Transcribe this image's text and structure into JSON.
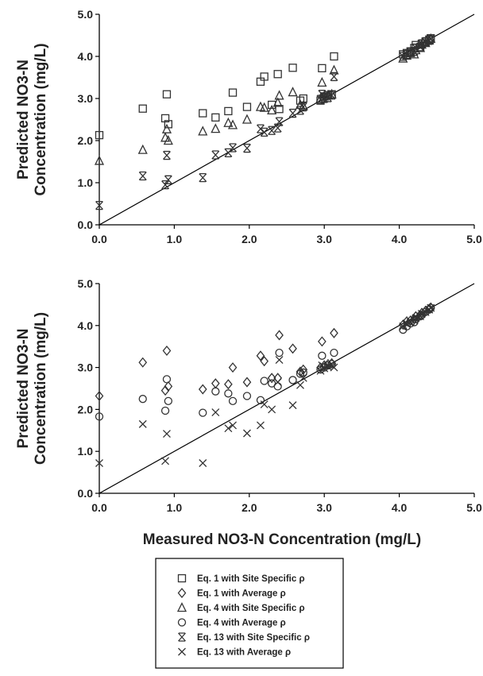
{
  "chart_data": [
    {
      "type": "scatter",
      "xlim": [
        0,
        5
      ],
      "ylim": [
        0,
        5
      ],
      "xticks": [
        "0.0",
        "1.0",
        "2.0",
        "3.0",
        "4.0",
        "5.0"
      ],
      "yticks": [
        "0.0",
        "1.0",
        "2.0",
        "3.0",
        "4.0",
        "5.0"
      ],
      "ylabel": "Predicted NO3-N Concentration (mg/L)",
      "ylabel_lines": [
        "Predicted NO3-N",
        "Concentration (mg/L)"
      ],
      "xlabel": "",
      "one_to_one_line": true,
      "series": [
        {
          "name": "Eq. 1 with Site Specific ρ",
          "marker": "square",
          "points": [
            [
              0.0,
              2.13
            ],
            [
              0.58,
              2.76
            ],
            [
              0.88,
              2.53
            ],
            [
              0.9,
              3.1
            ],
            [
              0.92,
              2.39
            ],
            [
              1.38,
              2.65
            ],
            [
              1.55,
              2.55
            ],
            [
              1.72,
              2.7
            ],
            [
              1.78,
              3.14
            ],
            [
              1.97,
              2.8
            ],
            [
              2.15,
              3.4
            ],
            [
              2.2,
              3.52
            ],
            [
              2.3,
              2.85
            ],
            [
              2.38,
              3.58
            ],
            [
              2.4,
              2.75
            ],
            [
              2.58,
              3.73
            ],
            [
              2.68,
              2.95
            ],
            [
              2.72,
              3.0
            ],
            [
              2.95,
              2.95
            ],
            [
              2.97,
              3.72
            ],
            [
              3.0,
              3.05
            ],
            [
              3.05,
              3.08
            ],
            [
              3.1,
              3.1
            ],
            [
              3.13,
              4.0
            ],
            [
              4.05,
              4.05
            ],
            [
              4.1,
              4.08
            ],
            [
              4.15,
              4.12
            ],
            [
              4.2,
              4.2
            ],
            [
              4.22,
              4.27
            ],
            [
              4.28,
              4.22
            ],
            [
              4.3,
              4.3
            ],
            [
              4.35,
              4.35
            ],
            [
              4.4,
              4.4
            ],
            [
              4.42,
              4.43
            ]
          ]
        },
        {
          "name": "Eq. 4 with Site Specific ρ",
          "marker": "triangle",
          "points": [
            [
              0.0,
              1.52
            ],
            [
              0.58,
              1.78
            ],
            [
              0.88,
              2.07
            ],
            [
              0.9,
              2.27
            ],
            [
              0.92,
              2.0
            ],
            [
              1.38,
              2.22
            ],
            [
              1.55,
              2.28
            ],
            [
              1.72,
              2.42
            ],
            [
              1.78,
              2.37
            ],
            [
              1.97,
              2.5
            ],
            [
              2.15,
              2.8
            ],
            [
              2.2,
              2.78
            ],
            [
              2.3,
              2.72
            ],
            [
              2.38,
              2.9
            ],
            [
              2.4,
              3.07
            ],
            [
              2.58,
              3.15
            ],
            [
              2.68,
              2.85
            ],
            [
              2.72,
              2.82
            ],
            [
              2.95,
              3.0
            ],
            [
              2.97,
              3.38
            ],
            [
              3.0,
              3.05
            ],
            [
              3.05,
              3.08
            ],
            [
              3.1,
              3.1
            ],
            [
              3.13,
              3.67
            ],
            [
              4.05,
              3.95
            ],
            [
              4.1,
              4.02
            ],
            [
              4.15,
              4.08
            ],
            [
              4.2,
              4.05
            ],
            [
              4.22,
              4.15
            ],
            [
              4.28,
              4.2
            ],
            [
              4.3,
              4.28
            ],
            [
              4.35,
              4.32
            ],
            [
              4.4,
              4.38
            ],
            [
              4.42,
              4.42
            ]
          ]
        },
        {
          "name": "Eq. 13 with Site Specific ρ",
          "marker": "asterisk",
          "points": [
            [
              0.0,
              0.46
            ],
            [
              0.58,
              1.16
            ],
            [
              0.88,
              0.95
            ],
            [
              0.9,
              1.65
            ],
            [
              0.92,
              1.07
            ],
            [
              1.38,
              1.12
            ],
            [
              1.55,
              1.66
            ],
            [
              1.72,
              1.71
            ],
            [
              1.78,
              1.83
            ],
            [
              1.97,
              1.82
            ],
            [
              2.15,
              2.28
            ],
            [
              2.2,
              2.2
            ],
            [
              2.3,
              2.24
            ],
            [
              2.38,
              2.3
            ],
            [
              2.4,
              2.45
            ],
            [
              2.58,
              2.65
            ],
            [
              2.68,
              2.72
            ],
            [
              2.72,
              2.8
            ],
            [
              2.95,
              2.98
            ],
            [
              2.97,
              3.1
            ],
            [
              3.0,
              3.0
            ],
            [
              3.05,
              3.02
            ],
            [
              3.1,
              3.08
            ],
            [
              3.13,
              3.52
            ],
            [
              4.05,
              4.0
            ],
            [
              4.1,
              4.05
            ],
            [
              4.15,
              4.1
            ],
            [
              4.2,
              4.12
            ],
            [
              4.22,
              4.2
            ],
            [
              4.28,
              4.22
            ],
            [
              4.3,
              4.3
            ],
            [
              4.35,
              4.35
            ],
            [
              4.4,
              4.38
            ],
            [
              4.42,
              4.42
            ]
          ]
        }
      ]
    },
    {
      "type": "scatter",
      "xlim": [
        0,
        5
      ],
      "ylim": [
        0,
        5
      ],
      "xticks": [
        "0.0",
        "1.0",
        "2.0",
        "3.0",
        "4.0",
        "5.0"
      ],
      "yticks": [
        "0.0",
        "1.0",
        "2.0",
        "3.0",
        "4.0",
        "5.0"
      ],
      "ylabel": "Predicted NO3-N Concentration (mg/L)",
      "ylabel_lines": [
        "Predicted NO3-N",
        "Concentration (mg/L)"
      ],
      "xlabel": "Measured NO3-N Concentration (mg/L)",
      "one_to_one_line": true,
      "series": [
        {
          "name": "Eq. 1 with Average ρ",
          "marker": "diamond",
          "points": [
            [
              0.0,
              2.32
            ],
            [
              0.58,
              3.12
            ],
            [
              0.88,
              2.45
            ],
            [
              0.9,
              3.4
            ],
            [
              0.92,
              2.55
            ],
            [
              1.38,
              2.48
            ],
            [
              1.55,
              2.62
            ],
            [
              1.72,
              2.6
            ],
            [
              1.78,
              3.0
            ],
            [
              1.97,
              2.65
            ],
            [
              2.15,
              3.28
            ],
            [
              2.2,
              3.15
            ],
            [
              2.3,
              2.75
            ],
            [
              2.38,
              2.75
            ],
            [
              2.4,
              3.77
            ],
            [
              2.58,
              3.45
            ],
            [
              2.68,
              2.9
            ],
            [
              2.72,
              2.95
            ],
            [
              2.95,
              3.0
            ],
            [
              2.97,
              3.62
            ],
            [
              3.0,
              3.05
            ],
            [
              3.05,
              3.08
            ],
            [
              3.1,
              3.1
            ],
            [
              3.13,
              3.82
            ],
            [
              4.05,
              4.02
            ],
            [
              4.1,
              4.1
            ],
            [
              4.15,
              4.12
            ],
            [
              4.2,
              4.15
            ],
            [
              4.22,
              4.22
            ],
            [
              4.28,
              4.25
            ],
            [
              4.3,
              4.3
            ],
            [
              4.35,
              4.35
            ],
            [
              4.4,
              4.4
            ],
            [
              4.42,
              4.43
            ]
          ]
        },
        {
          "name": "Eq. 4 with Average ρ",
          "marker": "circle",
          "points": [
            [
              0.0,
              1.83
            ],
            [
              0.58,
              2.25
            ],
            [
              0.88,
              1.97
            ],
            [
              0.9,
              2.72
            ],
            [
              0.92,
              2.2
            ],
            [
              1.38,
              1.92
            ],
            [
              1.55,
              2.43
            ],
            [
              1.72,
              2.38
            ],
            [
              1.78,
              2.2
            ],
            [
              1.97,
              2.32
            ],
            [
              2.15,
              2.22
            ],
            [
              2.2,
              2.68
            ],
            [
              2.3,
              2.62
            ],
            [
              2.38,
              2.55
            ],
            [
              2.4,
              3.35
            ],
            [
              2.58,
              2.7
            ],
            [
              2.68,
              2.85
            ],
            [
              2.72,
              2.88
            ],
            [
              2.95,
              2.95
            ],
            [
              2.97,
              3.28
            ],
            [
              3.0,
              3.0
            ],
            [
              3.05,
              3.05
            ],
            [
              3.1,
              3.08
            ],
            [
              3.13,
              3.35
            ],
            [
              4.05,
              3.9
            ],
            [
              4.1,
              3.98
            ],
            [
              4.15,
              4.05
            ],
            [
              4.2,
              4.08
            ],
            [
              4.22,
              4.15
            ],
            [
              4.28,
              4.22
            ],
            [
              4.3,
              4.25
            ],
            [
              4.35,
              4.32
            ],
            [
              4.4,
              4.38
            ],
            [
              4.42,
              4.42
            ]
          ]
        },
        {
          "name": "Eq. 13 with Average ρ",
          "marker": "x",
          "points": [
            [
              0.0,
              0.72
            ],
            [
              0.58,
              1.65
            ],
            [
              0.88,
              0.77
            ],
            [
              0.9,
              1.42
            ],
            [
              1.38,
              0.72
            ],
            [
              1.55,
              1.93
            ],
            [
              1.72,
              1.55
            ],
            [
              1.78,
              1.62
            ],
            [
              1.97,
              1.43
            ],
            [
              2.15,
              1.62
            ],
            [
              2.2,
              2.12
            ],
            [
              2.3,
              2.0
            ],
            [
              2.38,
              2.65
            ],
            [
              2.4,
              3.18
            ],
            [
              2.58,
              2.1
            ],
            [
              2.68,
              2.58
            ],
            [
              2.72,
              2.75
            ],
            [
              2.95,
              2.92
            ],
            [
              2.97,
              3.05
            ],
            [
              3.0,
              2.98
            ],
            [
              3.05,
              3.02
            ],
            [
              3.1,
              3.05
            ],
            [
              3.13,
              3.0
            ],
            [
              4.05,
              3.98
            ],
            [
              4.1,
              4.05
            ],
            [
              4.15,
              4.08
            ],
            [
              4.2,
              4.12
            ],
            [
              4.22,
              4.18
            ],
            [
              4.28,
              4.22
            ],
            [
              4.3,
              4.28
            ],
            [
              4.35,
              4.32
            ],
            [
              4.4,
              4.38
            ],
            [
              4.42,
              4.42
            ]
          ]
        }
      ]
    }
  ],
  "legend": {
    "items": [
      {
        "marker": "square",
        "label": "Eq. 1 with Site Specific ρ"
      },
      {
        "marker": "diamond",
        "label": "Eq. 1 with Average  ρ"
      },
      {
        "marker": "triangle",
        "label": "Eq. 4 with Site Specific ρ"
      },
      {
        "marker": "circle",
        "label": "Eq. 4 with Average  ρ"
      },
      {
        "marker": "asterisk",
        "label": "Eq. 13 with Site Specific ρ"
      },
      {
        "marker": "x",
        "label": "Eq. 13 with Average  ρ"
      }
    ]
  },
  "colors": {
    "marker": "#333333",
    "axis": "#000000",
    "line": "#000000"
  }
}
